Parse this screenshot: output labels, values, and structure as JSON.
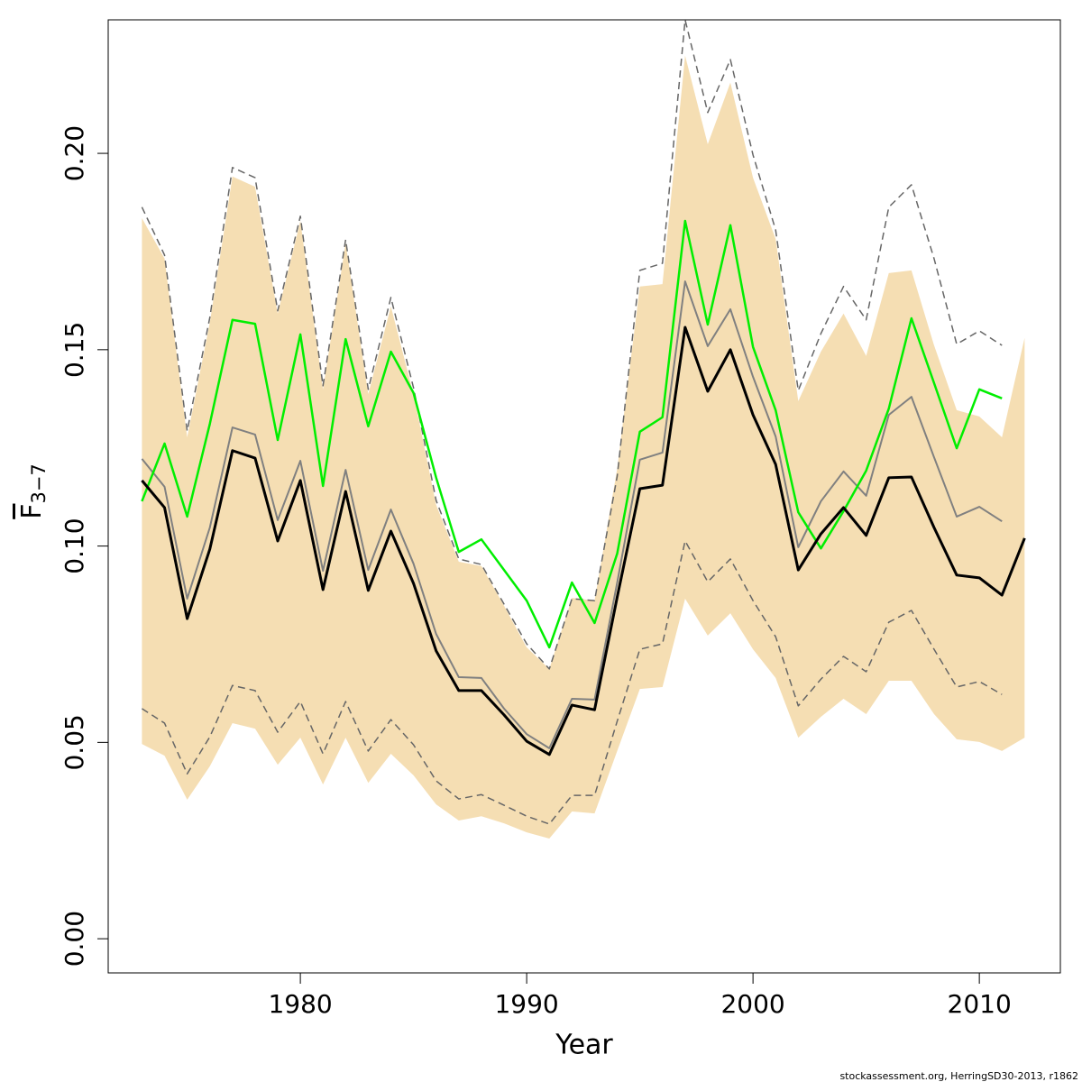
{
  "chart_data": {
    "type": "line",
    "xlabel": "Year",
    "ylabel": "F",
    "ylabel_sub": "3−7",
    "footer": "stockassessment.org, HerringSD30-2013, r1862",
    "x": [
      1973,
      1974,
      1975,
      1976,
      1977,
      1978,
      1979,
      1980,
      1981,
      1982,
      1983,
      1984,
      1985,
      1986,
      1987,
      1988,
      1989,
      1990,
      1991,
      1992,
      1993,
      1994,
      1995,
      1996,
      1997,
      1998,
      1999,
      2000,
      2001,
      2002,
      2003,
      2004,
      2005,
      2006,
      2007,
      2008,
      2009,
      2010,
      2011,
      2012
    ],
    "xlim": [
      1971.51,
      2013.58
    ],
    "xticks": [
      1980,
      1990,
      2000,
      2010
    ],
    "ylim": [
      -0.0087,
      0.234
    ],
    "yticks": [
      {
        "value": 0,
        "label": "0.00"
      },
      {
        "value": 0.05,
        "label": "0.05"
      },
      {
        "value": 0.1,
        "label": "0.10"
      },
      {
        "value": 0.15,
        "label": "0.15"
      },
      {
        "value": 0.2,
        "label": "0.20"
      }
    ],
    "band": {
      "color": "#f5deb3",
      "upper": [
        0.1835,
        0.1732,
        0.1277,
        0.1569,
        0.1941,
        0.1915,
        0.1592,
        0.1828,
        0.1399,
        0.1771,
        0.1387,
        0.161,
        0.1387,
        0.1105,
        0.096,
        0.0949,
        0.0848,
        0.0742,
        0.0687,
        0.0868,
        0.0861,
        0.1197,
        0.1661,
        0.1667,
        0.2249,
        0.2023,
        0.218,
        0.1938,
        0.1782,
        0.1369,
        0.1495,
        0.1592,
        0.1484,
        0.1695,
        0.1702,
        0.1511,
        0.1346,
        0.133,
        0.1277,
        0.153
      ],
      "lower": [
        0.0496,
        0.0466,
        0.0354,
        0.0439,
        0.0549,
        0.0535,
        0.0443,
        0.0512,
        0.0393,
        0.0512,
        0.0397,
        0.0471,
        0.0416,
        0.0342,
        0.0301,
        0.0312,
        0.0294,
        0.0271,
        0.0255,
        0.0324,
        0.0319,
        0.0478,
        0.0636,
        0.0641,
        0.0866,
        0.0772,
        0.0829,
        0.0737,
        0.0664,
        0.0512,
        0.0565,
        0.0611,
        0.0572,
        0.0657,
        0.0657,
        0.0572,
        0.0508,
        0.0501,
        0.0478,
        0.0512
      ]
    },
    "series": [
      {
        "color": "#666666",
        "linestyle": "dashed",
        "width": 1.5,
        "values": [
          0.1863,
          0.1741,
          0.1293,
          0.1582,
          0.1964,
          0.1938,
          0.1599,
          0.184,
          0.1408,
          0.178,
          0.1399,
          0.1633,
          0.1403,
          0.1116,
          0.0967,
          0.0953,
          0.0852,
          0.0751,
          0.0687,
          0.0866,
          0.0861,
          0.1178,
          0.1702,
          0.172,
          0.234,
          0.2104,
          0.2239,
          0.1996,
          0.1805,
          0.1396,
          0.1541,
          0.1661,
          0.1576,
          0.1863,
          0.192,
          0.1732,
          0.1514,
          0.1548,
          0.1511,
          null
        ]
      },
      {
        "color": "#666666",
        "linestyle": "dashed",
        "width": 1.5,
        "values": [
          0.0586,
          0.0549,
          0.042,
          0.0514,
          0.0645,
          0.0632,
          0.0526,
          0.0604,
          0.0471,
          0.0604,
          0.0478,
          0.0558,
          0.0494,
          0.0402,
          0.0356,
          0.0367,
          0.034,
          0.0312,
          0.0292,
          0.0365,
          0.0365,
          0.0554,
          0.0737,
          0.0751,
          0.1013,
          0.0909,
          0.0967,
          0.0861,
          0.0769,
          0.0593,
          0.0661,
          0.0719,
          0.068,
          0.0806,
          0.0836,
          0.0737,
          0.0641,
          0.0655,
          0.0622,
          null
        ]
      },
      {
        "color": "#808080",
        "linestyle": "solid",
        "width": 2,
        "values": [
          0.1222,
          0.1151,
          0.0866,
          0.1047,
          0.1302,
          0.1284,
          0.1066,
          0.1217,
          0.0937,
          0.1194,
          0.0939,
          0.1093,
          0.0955,
          0.0776,
          0.0666,
          0.0664,
          0.0586,
          0.0521,
          0.0485,
          0.0611,
          0.0609,
          0.0907,
          0.122,
          0.1238,
          0.1674,
          0.1509,
          0.1603,
          0.1431,
          0.1279,
          0.0997,
          0.1114,
          0.119,
          0.1128,
          0.1334,
          0.138,
          0.1226,
          0.1075,
          0.11,
          0.1063,
          null
        ]
      },
      {
        "color": "#00ee00",
        "linestyle": "solid",
        "width": 2.5,
        "values": [
          0.1114,
          0.1261,
          0.1075,
          0.1311,
          0.1576,
          0.1566,
          0.127,
          0.1539,
          0.1153,
          0.1527,
          0.1305,
          0.1495,
          0.139,
          0.1174,
          0.0985,
          0.1017,
          0.0939,
          0.0861,
          0.0742,
          0.0907,
          0.0804,
          0.0981,
          0.1291,
          0.1328,
          0.1828,
          0.1564,
          0.1817,
          0.1507,
          0.1346,
          0.1086,
          0.0994,
          0.1089,
          0.1192,
          0.135,
          0.158,
          0.1415,
          0.1249,
          0.1399,
          0.1376,
          null
        ]
      },
      {
        "color": "#000000",
        "linestyle": "solid",
        "width": 3,
        "values": [
          0.1167,
          0.1098,
          0.0815,
          0.0992,
          0.1243,
          0.1224,
          0.1013,
          0.1167,
          0.0889,
          0.1139,
          0.0887,
          0.1038,
          0.0905,
          0.0733,
          0.0632,
          0.0632,
          0.057,
          0.0503,
          0.0469,
          0.0595,
          0.0583,
          0.087,
          0.1146,
          0.1155,
          0.1557,
          0.1394,
          0.15,
          0.1334,
          0.1208,
          0.0939,
          0.1031,
          0.1098,
          0.1027,
          0.1174,
          0.1176,
          0.1047,
          0.0926,
          0.0919,
          0.0875,
          0.102
        ]
      }
    ]
  }
}
